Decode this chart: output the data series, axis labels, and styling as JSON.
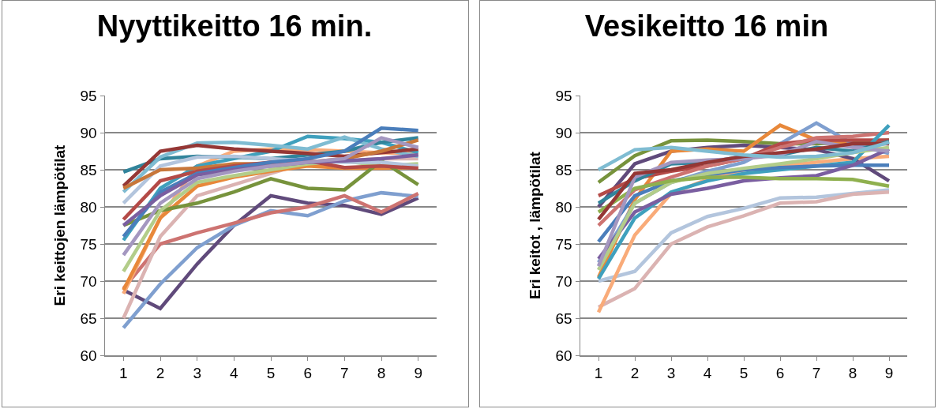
{
  "chart_data": [
    {
      "type": "line",
      "title": "Nyyttikeitto 16 min.",
      "ylabel": "Eri keittojen lämpötilat",
      "categories": [
        "1",
        "2",
        "3",
        "4",
        "5",
        "6",
        "7",
        "8",
        "9"
      ],
      "ylim": [
        60,
        95
      ],
      "yticks": [
        60,
        65,
        70,
        75,
        80,
        85,
        90,
        95
      ],
      "grid": "y",
      "series": [
        {
          "color": "#604a7b",
          "values": [
            68.8,
            66.3,
            72.3,
            77.5,
            81.5,
            80.5,
            80.2,
            79.0,
            81.2
          ]
        },
        {
          "color": "#7f9fcf",
          "values": [
            63.7,
            69.6,
            74.5,
            77.5,
            79.5,
            78.8,
            80.8,
            81.9,
            81.4
          ]
        },
        {
          "color": "#cd7371",
          "values": [
            69.0,
            75.0,
            76.5,
            77.8,
            79.2,
            80.0,
            81.5,
            79.3,
            81.8
          ]
        },
        {
          "color": "#dbb3b2",
          "values": [
            65.0,
            76.0,
            81.5,
            83.0,
            84.5,
            86.0,
            86.2,
            86.5,
            86.5
          ]
        },
        {
          "color": "#f9ab79",
          "values": [
            68.3,
            78.5,
            85.5,
            87.5,
            87.8,
            87.7,
            87.5,
            87.3,
            87.2
          ]
        },
        {
          "color": "#e8883a",
          "values": [
            68.8,
            78.5,
            82.8,
            84.0,
            84.8,
            85.5,
            85.2,
            85.2,
            85.3
          ]
        },
        {
          "color": "#77933c",
          "values": [
            77.5,
            79.5,
            80.5,
            82.0,
            83.8,
            82.5,
            82.3,
            86.2,
            83.0
          ]
        },
        {
          "color": "#b3cd8a",
          "values": [
            71.3,
            79.5,
            83.3,
            84.2,
            85.0,
            85.8,
            86.2,
            85.5,
            85.8
          ]
        },
        {
          "color": "#3fa0bd",
          "values": [
            75.5,
            82.5,
            85.5,
            86.5,
            87.5,
            89.5,
            89.2,
            88.7,
            87.3
          ]
        },
        {
          "color": "#31849b",
          "values": [
            84.7,
            86.5,
            86.8,
            86.7,
            86.5,
            87.0,
            87.5,
            88.7,
            89.3
          ]
        },
        {
          "color": "#7fbcd2",
          "values": [
            82.0,
            86.7,
            88.6,
            88.7,
            88.3,
            87.8,
            89.4,
            87.8,
            86.8
          ]
        },
        {
          "color": "#b3c5dd",
          "values": [
            80.5,
            85.5,
            86.7,
            86.8,
            86.5,
            86.2,
            86.0,
            86.0,
            85.5
          ]
        },
        {
          "color": "#953735",
          "values": [
            82.8,
            87.5,
            88.3,
            87.8,
            87.5,
            87.2,
            86.8,
            87.3,
            87.8
          ]
        },
        {
          "color": "#c8773a",
          "values": [
            82.5,
            85.0,
            85.2,
            85.8,
            85.8,
            86.0,
            86.5,
            87.5,
            89.0
          ]
        },
        {
          "color": "#b44a47",
          "values": [
            78.3,
            83.5,
            84.8,
            85.5,
            86.0,
            86.2,
            85.3,
            85.5,
            85.2
          ]
        },
        {
          "color": "#4a7ebb",
          "values": [
            76.0,
            82.0,
            84.5,
            85.3,
            86.0,
            86.5,
            87.5,
            90.6,
            90.3
          ]
        },
        {
          "color": "#7a5ea0",
          "values": [
            77.5,
            81.5,
            84.3,
            85.0,
            85.5,
            86.0,
            86.2,
            86.5,
            87.0
          ]
        },
        {
          "color": "#a497c0",
          "values": [
            73.5,
            80.5,
            83.8,
            84.8,
            85.5,
            86.0,
            86.5,
            89.3,
            88.0
          ]
        }
      ]
    },
    {
      "type": "line",
      "title": "Vesikeitto 16 min",
      "ylabel": "Eri keitot , lämpötilat",
      "categories": [
        "1",
        "2",
        "3",
        "4",
        "5",
        "6",
        "7",
        "8",
        "9"
      ],
      "ylim": [
        60,
        95
      ],
      "yticks": [
        60,
        65,
        70,
        75,
        80,
        85,
        90,
        95
      ],
      "grid": "y",
      "series": [
        {
          "color": "#b3c5dd",
          "values": [
            70.0,
            71.3,
            76.5,
            78.7,
            79.8,
            81.2,
            81.3,
            81.8,
            82.3
          ]
        },
        {
          "color": "#dbb3b2",
          "values": [
            66.5,
            69.0,
            75.0,
            77.3,
            78.8,
            80.5,
            80.7,
            81.7,
            82.0
          ]
        },
        {
          "color": "#f9ab79",
          "values": [
            65.8,
            76.2,
            81.8,
            83.7,
            85.0,
            85.5,
            86.0,
            86.5,
            86.8
          ]
        },
        {
          "color": "#77933c",
          "values": [
            83.3,
            86.9,
            88.9,
            89.0,
            88.8,
            88.5,
            88.5,
            88.7,
            89.0
          ]
        },
        {
          "color": "#604a7b",
          "values": [
            80.0,
            85.8,
            87.5,
            88.0,
            88.3,
            88.0,
            87.7,
            86.5,
            83.5
          ]
        },
        {
          "color": "#e8883a",
          "values": [
            70.5,
            81.0,
            87.5,
            87.8,
            87.5,
            91.0,
            89.0,
            88.5,
            87.5
          ]
        },
        {
          "color": "#7f9fcf",
          "values": [
            72.5,
            80.5,
            83.3,
            84.8,
            86.0,
            88.5,
            91.3,
            88.5,
            87.2
          ]
        },
        {
          "color": "#b44a47",
          "values": [
            81.5,
            83.8,
            84.8,
            85.5,
            86.5,
            88.5,
            89.0,
            89.0,
            89.0
          ]
        },
        {
          "color": "#cd7371",
          "values": [
            77.5,
            82.3,
            84.0,
            85.5,
            86.5,
            88.0,
            89.3,
            89.5,
            90.0
          ]
        },
        {
          "color": "#3fa0bd",
          "values": [
            70.3,
            78.5,
            82.0,
            83.5,
            84.5,
            85.0,
            85.5,
            86.0,
            91.0
          ]
        },
        {
          "color": "#31849b",
          "values": [
            80.5,
            83.5,
            85.8,
            86.0,
            86.8,
            87.0,
            88.0,
            87.5,
            88.8
          ]
        },
        {
          "color": "#4a7ebb",
          "values": [
            75.3,
            81.5,
            83.5,
            84.3,
            85.0,
            85.3,
            85.5,
            85.6,
            85.6
          ]
        },
        {
          "color": "#7a5ea0",
          "values": [
            73.0,
            79.3,
            81.7,
            82.5,
            83.5,
            83.9,
            84.2,
            85.6,
            87.8
          ]
        },
        {
          "color": "#b3cd8a",
          "values": [
            71.5,
            80.5,
            83.3,
            84.5,
            85.2,
            85.8,
            86.5,
            87.3,
            88.0
          ]
        },
        {
          "color": "#8fb04e",
          "values": [
            79.3,
            82.5,
            83.5,
            84.0,
            84.0,
            83.8,
            83.8,
            83.7,
            82.8
          ]
        },
        {
          "color": "#a497c0",
          "values": [
            72.0,
            84.0,
            86.0,
            86.3,
            86.5,
            87.0,
            88.8,
            88.0,
            87.5
          ]
        },
        {
          "color": "#953735",
          "values": [
            78.3,
            84.5,
            85.0,
            86.0,
            86.8,
            87.3,
            87.8,
            88.5,
            88.5
          ]
        },
        {
          "color": "#7fbcd2",
          "values": [
            85.0,
            87.7,
            88.0,
            87.5,
            87.0,
            86.7,
            86.8,
            87.3,
            88.7
          ]
        }
      ]
    }
  ]
}
